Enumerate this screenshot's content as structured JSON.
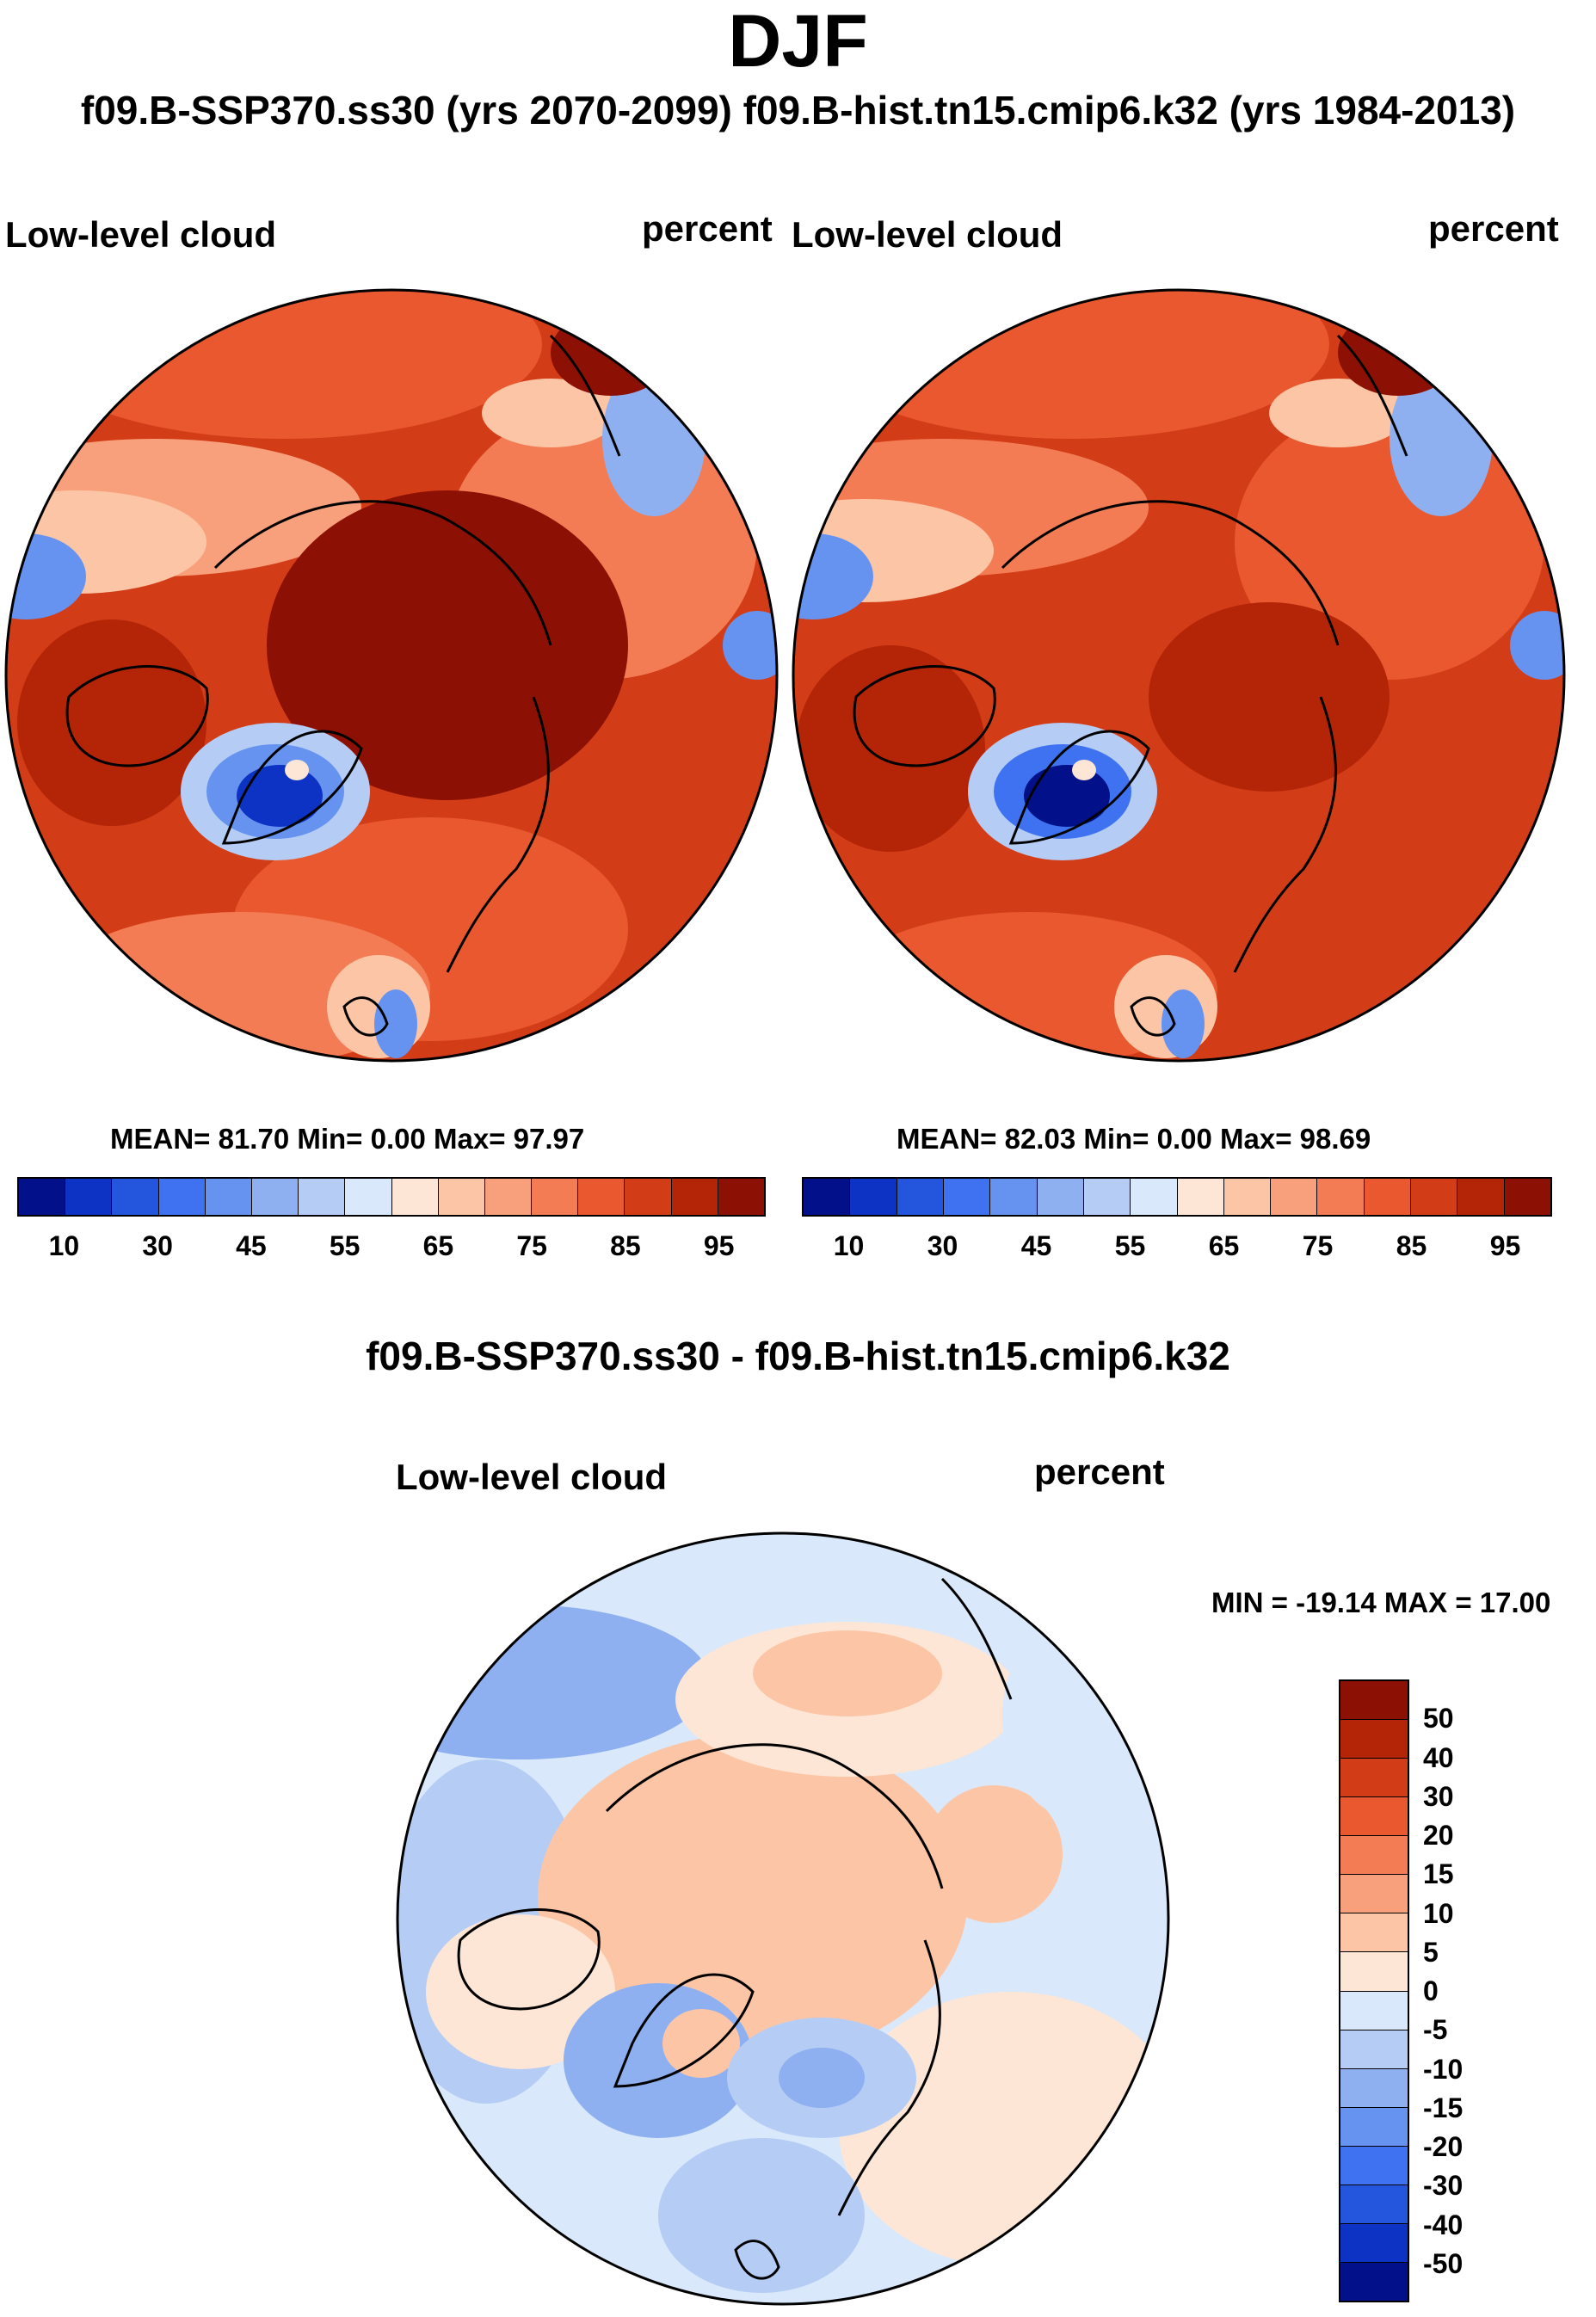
{
  "header": {
    "season": "DJF",
    "subtitle": "f09.B-SSP370.ss30 (yrs 2070-2099)  f09.B-hist.tn15.cmip6.k32 (yrs 1984-2013)"
  },
  "panels": [
    {
      "id": "ssp370",
      "variable": "Low-level cloud",
      "units": "percent",
      "stats": "MEAN=  81.70  Min=    0.00  Max=  97.97",
      "mean": 81.7,
      "min": 0.0,
      "max": 97.97
    },
    {
      "id": "hist",
      "variable": "Low-level cloud",
      "units": "percent",
      "stats": "MEAN=  82.03  Min=    0.00  Max=  98.69",
      "mean": 82.03,
      "min": 0.0,
      "max": 98.69
    }
  ],
  "difference": {
    "title": "f09.B-SSP370.ss30 - f09.B-hist.tn15.cmip6.k32",
    "variable": "Low-level cloud",
    "units": "percent",
    "stats": "MIN = -19.14 MAX =  17.00",
    "min": -19.14,
    "max": 17.0
  },
  "colorbars": {
    "absolute": {
      "colors": [
        "#02118a",
        "#0c33c4",
        "#2355dd",
        "#3f72f0",
        "#6693ef",
        "#8eb0f0",
        "#b5cdf5",
        "#d9e8fa",
        "#fde6d5",
        "#fcc6a6",
        "#f8a07b",
        "#f47c54",
        "#e9582e",
        "#d23c17",
        "#b42508",
        "#8c1004"
      ],
      "tick_labels": [
        "10",
        "30",
        "45",
        "55",
        "65",
        "75",
        "85",
        "95"
      ]
    },
    "difference": {
      "colors": [
        "#8c1004",
        "#b42508",
        "#d23c17",
        "#e9582e",
        "#f47c54",
        "#f8a07b",
        "#fcc6a6",
        "#fde6d5",
        "#d9e8fa",
        "#b5cdf5",
        "#8eb0f0",
        "#6693ef",
        "#3f72f0",
        "#2355dd",
        "#0c33c4",
        "#02118a"
      ],
      "tick_labels": [
        "50",
        "40",
        "30",
        "20",
        "15",
        "10",
        "5",
        "0",
        "-5",
        "-10",
        "-15",
        "-20",
        "-30",
        "-40",
        "-50"
      ]
    }
  }
}
